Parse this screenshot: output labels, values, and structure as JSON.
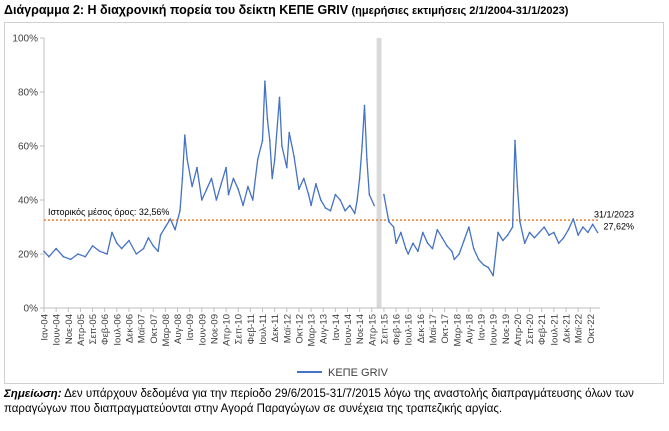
{
  "chart_data": {
    "type": "line",
    "title": "Διάγραμμα 2: Η διαχρονική πορεία του δείκτη ΚΕΠΕ GRIV",
    "subtitle": "(ημερήσιες εκτιμήσεις 2/1/2004-31/1/2023)",
    "ylim": [
      0,
      100
    ],
    "yticks": [
      "0%",
      "20%",
      "40%",
      "60%",
      "80%",
      "100%"
    ],
    "xlabels": [
      "Ιαν-04",
      "Ιουν-04",
      "Νοε-04",
      "Απρ-05",
      "Σεπ-05",
      "Φεβ-06",
      "Ιουλ-06",
      "Δεκ-06",
      "Μαϊ-07",
      "Οκτ-07",
      "Μαρ-08",
      "Αυγ-08",
      "Ιαν-09",
      "Ιουν-09",
      "Νοε-09",
      "Απρ-10",
      "Σεπ-10",
      "Φεβ-11",
      "Ιουλ-11",
      "Δεκ-11",
      "Μαϊ-12",
      "Οκτ-12",
      "Μαρ-13",
      "Αυγ-13",
      "Ιαν-14",
      "Ιουν-14",
      "Νοε-14",
      "Απρ-15",
      "Σεπ-15",
      "Φεβ-16",
      "Ιουλ-16",
      "Δεκ-16",
      "Μαϊ-17",
      "Οκτ-17",
      "Μαρ-18",
      "Αυγ-18",
      "Ιαν-19",
      "Ιουν-19",
      "Νοε-19",
      "Απρ-20",
      "Σεπ-20",
      "Φεβ-21",
      "Ιουλ-21",
      "Δεκ-21",
      "Μαϊ-22",
      "Οκτ-22"
    ],
    "grid": false,
    "legend": "bottom",
    "series": [
      {
        "name": "ΚΕΠΕ GRIV",
        "color": "#4472C4",
        "x": [
          "2004-01",
          "2004-03",
          "2004-06",
          "2004-09",
          "2004-12",
          "2005-03",
          "2005-06",
          "2005-09",
          "2005-12",
          "2006-03",
          "2006-05",
          "2006-07",
          "2006-09",
          "2006-12",
          "2007-03",
          "2007-06",
          "2007-08",
          "2007-10",
          "2007-12",
          "2008-01",
          "2008-03",
          "2008-05",
          "2008-07",
          "2008-09",
          "2008-10",
          "2008-11",
          "2008-12",
          "2009-02",
          "2009-04",
          "2009-06",
          "2009-08",
          "2009-10",
          "2009-12",
          "2010-02",
          "2010-04",
          "2010-05",
          "2010-07",
          "2010-09",
          "2010-11",
          "2011-01",
          "2011-03",
          "2011-05",
          "2011-07",
          "2011-08",
          "2011-09",
          "2011-10",
          "2011-11",
          "2011-12",
          "2012-02",
          "2012-03",
          "2012-05",
          "2012-06",
          "2012-08",
          "2012-10",
          "2012-12",
          "2013-02",
          "2013-03",
          "2013-05",
          "2013-07",
          "2013-09",
          "2013-11",
          "2014-01",
          "2014-03",
          "2014-05",
          "2014-07",
          "2014-09",
          "2014-10",
          "2014-11",
          "2014-12",
          "2015-01",
          "2015-02",
          "2015-03",
          "2015-05",
          "2015-06",
          "2015-08",
          "2015-09",
          "2015-11",
          "2016-01",
          "2016-02",
          "2016-04",
          "2016-06",
          "2016-07",
          "2016-09",
          "2016-11",
          "2017-01",
          "2017-03",
          "2017-05",
          "2017-07",
          "2017-09",
          "2017-11",
          "2018-01",
          "2018-02",
          "2018-04",
          "2018-06",
          "2018-08",
          "2018-10",
          "2018-12",
          "2019-02",
          "2019-04",
          "2019-06",
          "2019-08",
          "2019-10",
          "2019-12",
          "2020-02",
          "2020-03",
          "2020-04",
          "2020-05",
          "2020-07",
          "2020-09",
          "2020-11",
          "2021-01",
          "2021-03",
          "2021-05",
          "2021-07",
          "2021-09",
          "2021-11",
          "2022-01",
          "2022-03",
          "2022-05",
          "2022-07",
          "2022-09",
          "2022-11",
          "2023-01"
        ],
        "y": [
          21,
          19,
          22,
          19,
          18,
          20,
          19,
          23,
          21,
          20,
          28,
          24,
          22,
          25,
          20,
          22,
          26,
          23,
          21,
          27,
          30,
          33,
          29,
          36,
          48,
          64,
          55,
          45,
          52,
          40,
          44,
          48,
          40,
          46,
          52,
          42,
          48,
          44,
          38,
          45,
          40,
          55,
          62,
          84,
          70,
          62,
          48,
          55,
          78,
          60,
          52,
          65,
          56,
          44,
          48,
          42,
          38,
          46,
          40,
          37,
          36,
          42,
          40,
          36,
          38,
          35,
          40,
          48,
          60,
          75,
          55,
          42,
          38,
          35,
          46,
          42,
          32,
          30,
          24,
          28,
          22,
          20,
          24,
          21,
          28,
          24,
          22,
          29,
          26,
          23,
          21,
          18,
          20,
          25,
          30,
          22,
          18,
          16,
          15,
          12,
          28,
          25,
          27,
          30,
          62,
          45,
          32,
          24,
          28,
          26,
          28,
          30,
          27,
          28,
          24,
          26,
          29,
          33,
          27,
          30,
          28,
          31,
          28
        ]
      }
    ],
    "average_line": {
      "label": "Ιστορικός μέσος όρος: 32,56%",
      "value": 32.56,
      "color": "#ED7D31"
    },
    "gap_band": {
      "from": "2015-06",
      "to": "2015-08"
    },
    "end_annotation": {
      "date": "31/1/2023",
      "value": "27,62%"
    }
  },
  "note": {
    "label": "Σημείωση:",
    "text": "Δεν υπάρχουν δεδομένα για την περίοδο 29/6/2015-31/7/2015 λόγω της αναστολής διαπραγμάτευσης όλων των παραγώγων που διαπραγματεύονται στην Αγορά Παραγώγων σε συνέχεια της τραπεζικής αργίας."
  }
}
